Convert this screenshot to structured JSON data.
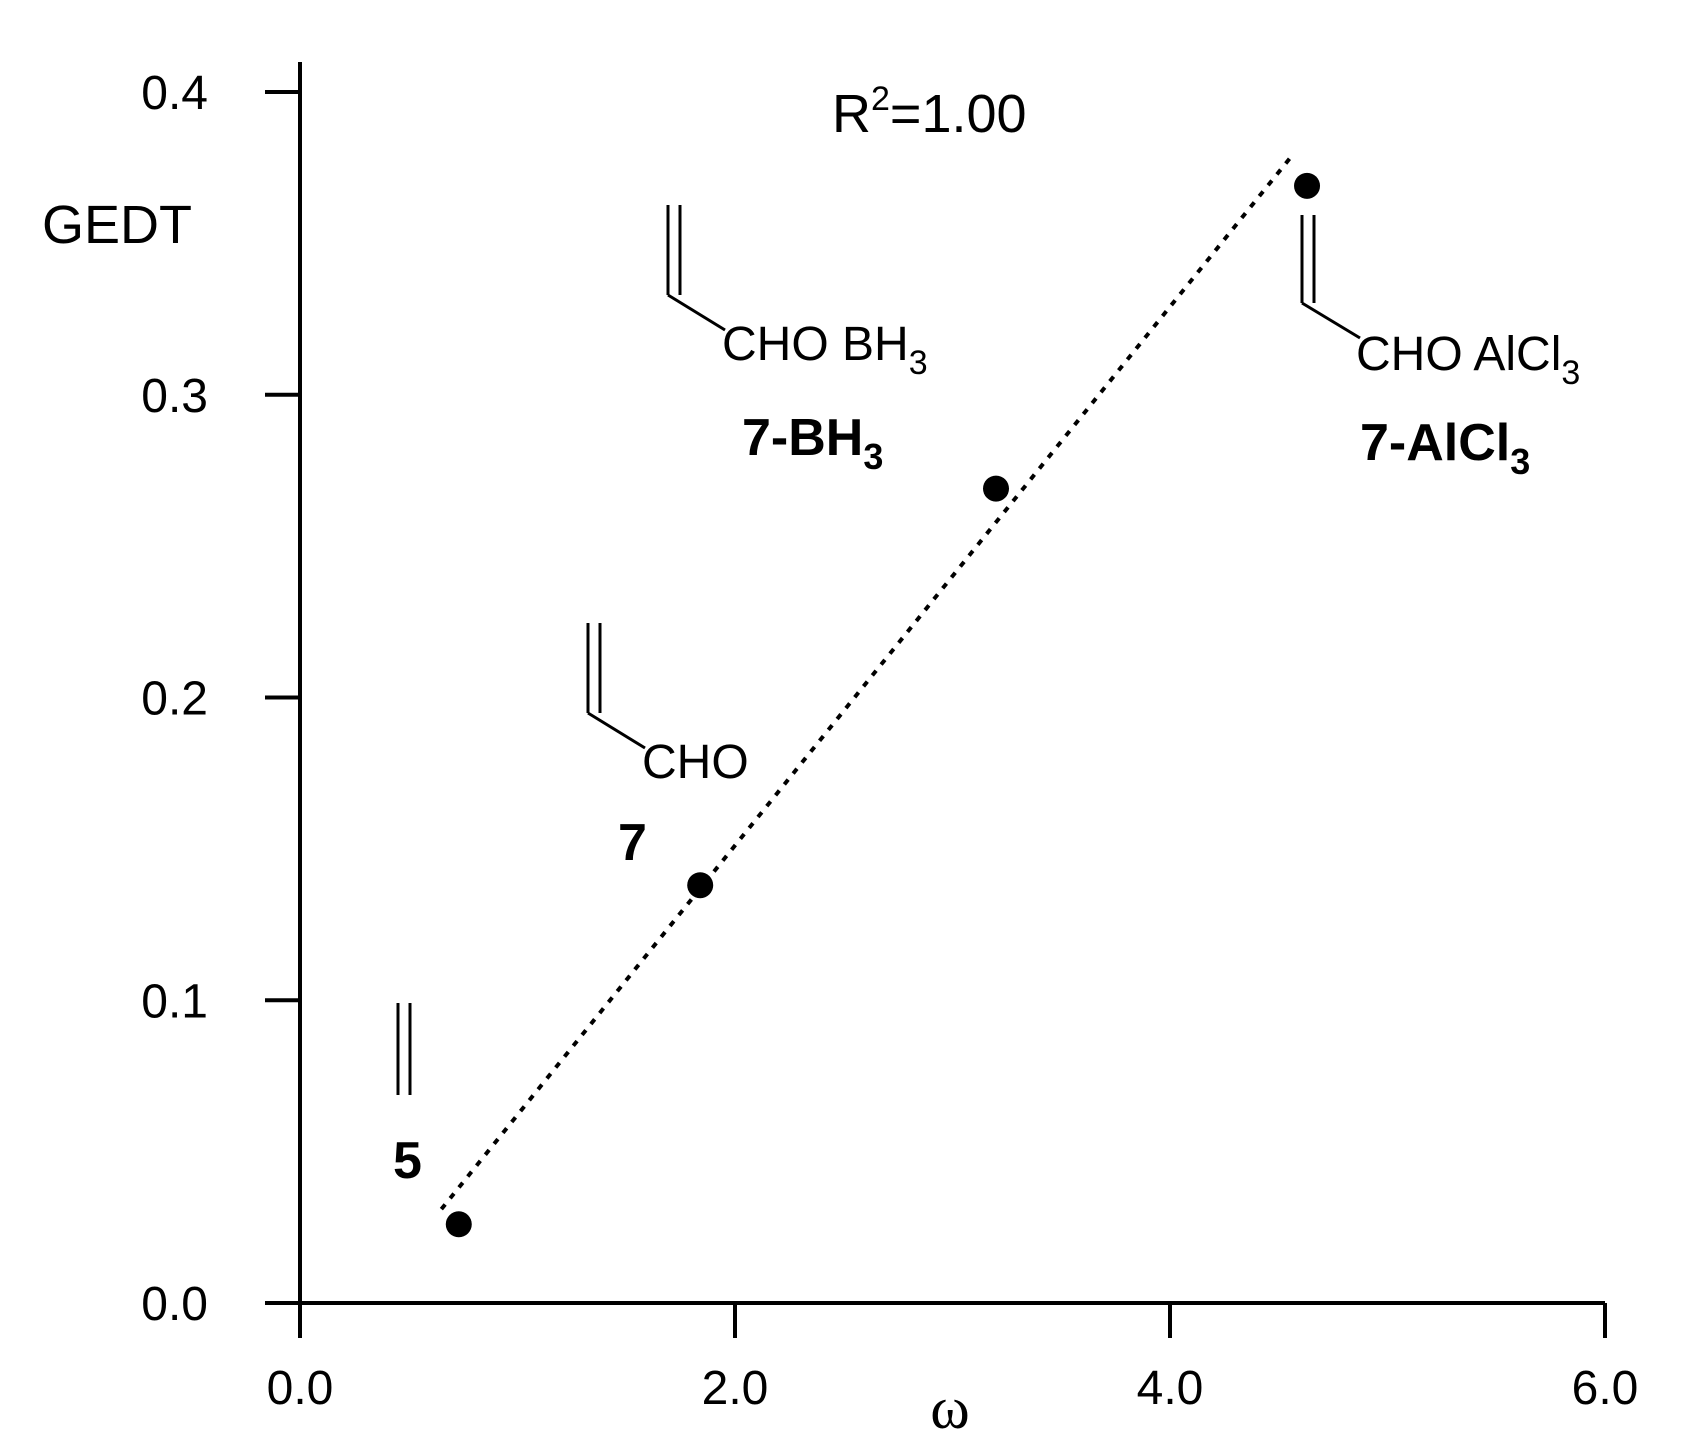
{
  "chart_data": {
    "type": "scatter",
    "title": "",
    "xlabel": "ω",
    "ylabel": "GEDT",
    "xlim": [
      0.0,
      6.0
    ],
    "ylim": [
      0.0,
      0.4
    ],
    "x_ticks": [
      "0.0",
      "2.0",
      "4.0",
      "6.0"
    ],
    "y_ticks": [
      "0.0",
      "0.1",
      "0.2",
      "0.3",
      "0.4"
    ],
    "grid": false,
    "annotation": {
      "text": "R",
      "superscript": "2",
      "value": "=1.00"
    },
    "points": [
      {
        "label": "5",
        "x": 0.73,
        "y": 0.026
      },
      {
        "label": "7",
        "x": 1.84,
        "y": 0.138
      },
      {
        "label": "7-BH3",
        "x": 3.2,
        "y": 0.269
      },
      {
        "label": "7-AlCl3",
        "x": 4.63,
        "y": 0.369
      }
    ],
    "trendline": {
      "style": "dotted",
      "x": [
        0.65,
        4.55
      ],
      "y": [
        0.031,
        0.378
      ]
    }
  },
  "structures": {
    "cmp7": {
      "group": "CHO",
      "label": "7"
    },
    "bh3": {
      "group": "CHO BH",
      "sub": "3",
      "label_main": "7-BH",
      "label_sub": "3"
    },
    "alcl3": {
      "group": "CHO AlCl",
      "sub": "3",
      "label_main": "7-AlCl",
      "label_sub": "3"
    },
    "ethylene": {
      "label": "5"
    }
  }
}
